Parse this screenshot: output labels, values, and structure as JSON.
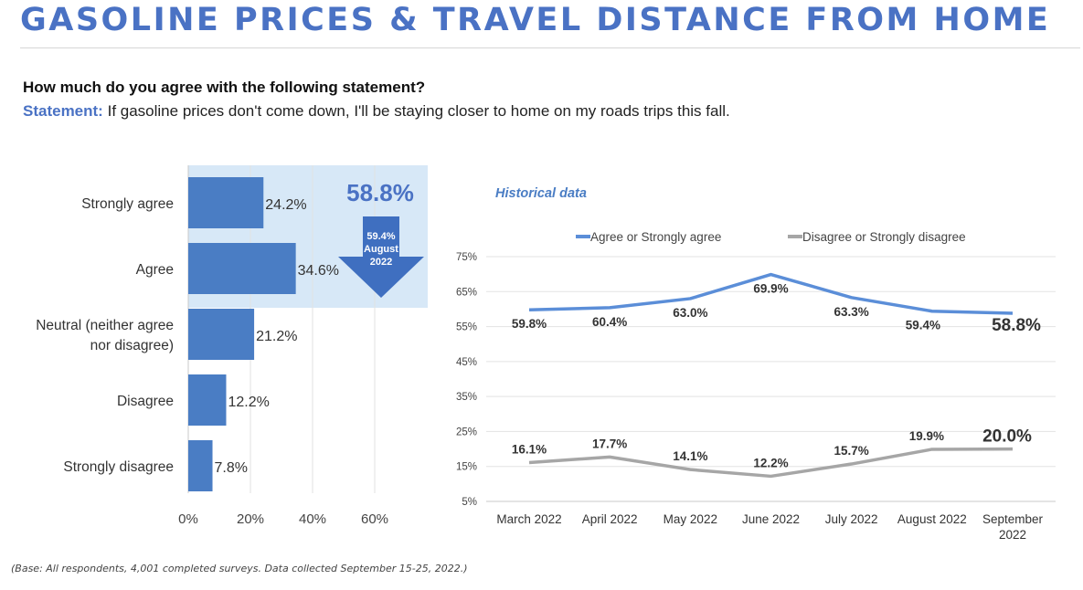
{
  "header": {
    "title": "GASOLINE PRICES & TRAVEL DISTANCE FROM HOME",
    "question": "How much do you agree with the following statement?",
    "statement_label": "Statement:",
    "statement_text": "If gasoline prices don't come down, I'll be staying closer to home on my roads trips this fall."
  },
  "footnote": "(Base: All respondents, 4,001 completed surveys. Data collected September 15-25, 2022.)",
  "colors": {
    "title": "#4a72c4",
    "bar": "#4a7dc4",
    "highlight_band": "#d7e8f7",
    "agree_line": "#5b8ed8",
    "disagree_line": "#a6a6a6"
  },
  "chart_data": [
    {
      "type": "bar",
      "orientation": "horizontal",
      "categories": [
        [
          "Strongly agree"
        ],
        [
          "Agree"
        ],
        [
          "Neutral (neither agree",
          "nor disagree)"
        ],
        [
          "Disagree"
        ],
        [
          "Strongly disagree"
        ]
      ],
      "values": [
        24.2,
        34.6,
        21.2,
        12.2,
        7.8
      ],
      "value_labels": [
        "24.2%",
        "34.6%",
        "21.2%",
        "12.2%",
        "7.8%"
      ],
      "x_ticks": [
        "0%",
        "20%",
        "40%",
        "60%"
      ],
      "xlim": [
        0,
        75
      ],
      "grid": true,
      "highlight": {
        "categories": [
          "Strongly agree",
          "Agree"
        ],
        "total_label": "58.8%",
        "arrow_lines": [
          "59.4%",
          "August",
          "2022"
        ]
      }
    },
    {
      "type": "line",
      "title": "Historical data",
      "categories": [
        [
          "March 2022"
        ],
        [
          "April 2022"
        ],
        [
          "May 2022"
        ],
        [
          "June 2022"
        ],
        [
          "July 2022"
        ],
        [
          "August 2022"
        ],
        [
          "September",
          "2022"
        ]
      ],
      "y_ticks": [
        "75%",
        "65%",
        "55%",
        "45%",
        "35%",
        "25%",
        "15%",
        "5%"
      ],
      "ylim": [
        5,
        75
      ],
      "grid": true,
      "legend_position": "top",
      "series": [
        {
          "name": "Agree or Strongly agree",
          "values": [
            59.8,
            60.4,
            63.0,
            69.9,
            63.3,
            59.4,
            58.8
          ],
          "labels": [
            "59.8%",
            "60.4%",
            "63.0%",
            "69.9%",
            "63.3%",
            "59.4%",
            "58.8%"
          ]
        },
        {
          "name": "Disagree or Strongly disagree",
          "values": [
            16.1,
            17.7,
            14.1,
            12.2,
            15.7,
            19.9,
            20.0
          ],
          "labels": [
            "16.1%",
            "17.7%",
            "14.1%",
            "12.2%",
            "15.7%",
            "19.9%",
            "20.0%"
          ]
        }
      ]
    }
  ]
}
